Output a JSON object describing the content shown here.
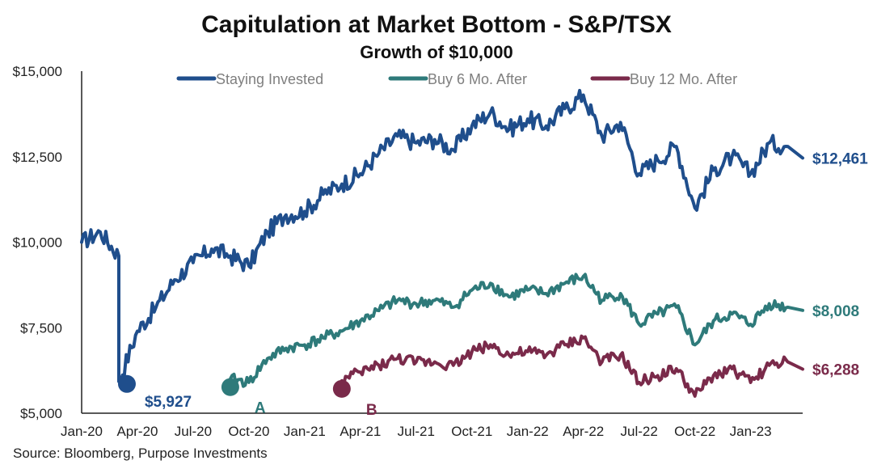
{
  "title": "Capitulation at Market Bottom - S&P/TSX",
  "subtitle": "Growth of $10,000",
  "source": "Source: Bloomberg, Purpose Investments",
  "colors": {
    "staying": "#1f4e8c",
    "six_month": "#2e7a7a",
    "twelve_month": "#7a2a4a"
  },
  "chart_data": {
    "type": "line",
    "x_labels": [
      "Jan-20",
      "Apr-20",
      "Jul-20",
      "Oct-20",
      "Jan-21",
      "Apr-21",
      "Jul-21",
      "Oct-21",
      "Jan-22",
      "Apr-22",
      "Jul-22",
      "Oct-22",
      "Jan-23"
    ],
    "y_ticks": [
      "$5,000",
      "$7,500",
      "$10,000",
      "$12,500",
      "$15,000"
    ],
    "ylim": [
      5000,
      15000
    ],
    "legend_position": "top",
    "series": [
      {
        "name": "Staying Invested",
        "key": "staying",
        "end_label": "$12,461",
        "start_label": "$5,927",
        "points": [
          [
            "Jan-20",
            10000
          ],
          [
            "Feb-20",
            10300
          ],
          [
            "Mar-20",
            9600
          ],
          [
            "Mar-20",
            5927
          ],
          [
            "Apr-20",
            7400
          ],
          [
            "May-20",
            8100
          ],
          [
            "Jun-20",
            8900
          ],
          [
            "Jul-20",
            9400
          ],
          [
            "Aug-20",
            9800
          ],
          [
            "Sep-20",
            9600
          ],
          [
            "Oct-20",
            9300
          ],
          [
            "Nov-20",
            10300
          ],
          [
            "Dec-20",
            10800
          ],
          [
            "Jan-21",
            10900
          ],
          [
            "Feb-21",
            11400
          ],
          [
            "Mar-21",
            11700
          ],
          [
            "Apr-21",
            12000
          ],
          [
            "May-21",
            12600
          ],
          [
            "Jun-21",
            13100
          ],
          [
            "Jul-21",
            12900
          ],
          [
            "Aug-21",
            13000
          ],
          [
            "Sep-21",
            12700
          ],
          [
            "Oct-21",
            13400
          ],
          [
            "Nov-21",
            13800
          ],
          [
            "Dec-21",
            13300
          ],
          [
            "Jan-22",
            13600
          ],
          [
            "Feb-22",
            13400
          ],
          [
            "Mar-22",
            13900
          ],
          [
            "Apr-22",
            14300
          ],
          [
            "May-22",
            13100
          ],
          [
            "Jun-22",
            13500
          ],
          [
            "Jul-22",
            12000
          ],
          [
            "Aug-22",
            12400
          ],
          [
            "Sep-22",
            12800
          ],
          [
            "Oct-22",
            11000
          ],
          [
            "Nov-22",
            12100
          ],
          [
            "Dec-22",
            12500
          ],
          [
            "Jan-23",
            12000
          ],
          [
            "Feb-23",
            12900
          ],
          [
            "Mar-23",
            12800
          ],
          [
            "Mar-23",
            12461
          ]
        ]
      },
      {
        "name": "Buy 6 Mo. After",
        "key": "six_month",
        "end_label": "$8,008",
        "marker_label": "A",
        "points": [
          [
            "Sep-20",
            6000
          ],
          [
            "Oct-20",
            5900
          ],
          [
            "Nov-20",
            6600
          ],
          [
            "Dec-20",
            6900
          ],
          [
            "Jan-21",
            7000
          ],
          [
            "Feb-21",
            7200
          ],
          [
            "Mar-21",
            7400
          ],
          [
            "Apr-21",
            7700
          ],
          [
            "May-21",
            8000
          ],
          [
            "Jun-21",
            8300
          ],
          [
            "Jul-21",
            8200
          ],
          [
            "Aug-21",
            8300
          ],
          [
            "Sep-21",
            8100
          ],
          [
            "Oct-21",
            8600
          ],
          [
            "Nov-21",
            8800
          ],
          [
            "Dec-21",
            8400
          ],
          [
            "Jan-22",
            8600
          ],
          [
            "Feb-22",
            8500
          ],
          [
            "Mar-22",
            8800
          ],
          [
            "Apr-22",
            9000
          ],
          [
            "May-22",
            8300
          ],
          [
            "Jun-22",
            8500
          ],
          [
            "Jul-22",
            7600
          ],
          [
            "Aug-22",
            7900
          ],
          [
            "Sep-22",
            8100
          ],
          [
            "Oct-22",
            7000
          ],
          [
            "Nov-22",
            7700
          ],
          [
            "Dec-22",
            7900
          ],
          [
            "Jan-23",
            7600
          ],
          [
            "Feb-23",
            8200
          ],
          [
            "Mar-23",
            8100
          ],
          [
            "Mar-23",
            8008
          ]
        ]
      },
      {
        "name": "Buy 12 Mo. After",
        "key": "twelve_month",
        "end_label": "$6,288",
        "marker_label": "B",
        "points": [
          [
            "Mar-21",
            5950
          ],
          [
            "Apr-21",
            6200
          ],
          [
            "May-21",
            6400
          ],
          [
            "Jun-21",
            6600
          ],
          [
            "Jul-21",
            6500
          ],
          [
            "Aug-21",
            6500
          ],
          [
            "Sep-21",
            6400
          ],
          [
            "Oct-21",
            6800
          ],
          [
            "Nov-21",
            7000
          ],
          [
            "Dec-21",
            6700
          ],
          [
            "Jan-22",
            6800
          ],
          [
            "Feb-22",
            6700
          ],
          [
            "Mar-22",
            7000
          ],
          [
            "Apr-22",
            7200
          ],
          [
            "May-22",
            6500
          ],
          [
            "Jun-22",
            6700
          ],
          [
            "Jul-22",
            5900
          ],
          [
            "Aug-22",
            6100
          ],
          [
            "Sep-22",
            6300
          ],
          [
            "Oct-22",
            5500
          ],
          [
            "Nov-22",
            6100
          ],
          [
            "Dec-22",
            6300
          ],
          [
            "Jan-23",
            5900
          ],
          [
            "Feb-23",
            6400
          ],
          [
            "Mar-23",
            6500
          ],
          [
            "Mar-23",
            6288
          ]
        ]
      }
    ]
  }
}
